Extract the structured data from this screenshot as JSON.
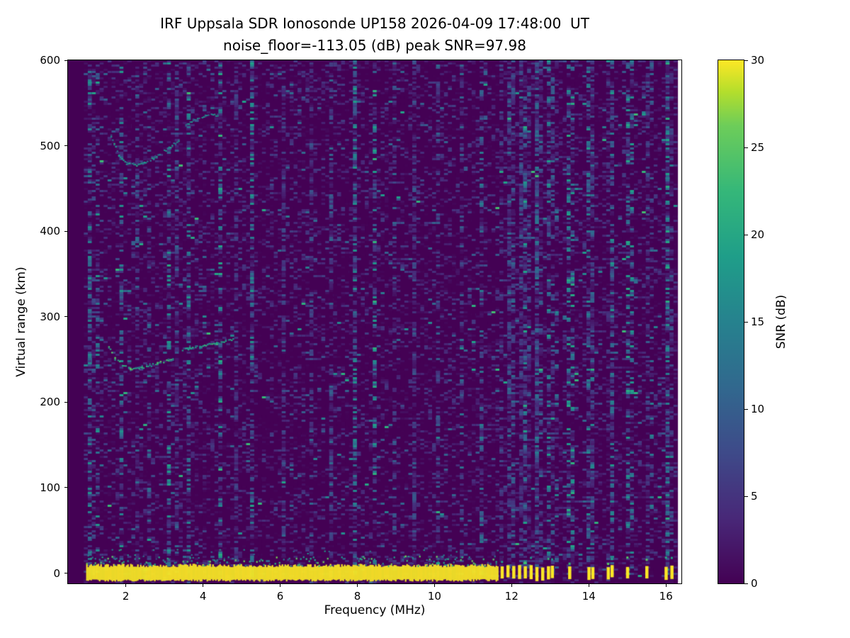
{
  "chart_data": {
    "type": "heatmap",
    "title": "IRF Uppsala SDR Ionosonde UP158 2026-04-09 17:48:00  UT",
    "subtitle": "noise_floor=-113.05 (dB) peak SNR=97.98",
    "xlabel": "Frequency (MHz)",
    "ylabel": "Virtual range (km)",
    "xlim": [
      0.5,
      16.4
    ],
    "ylim": [
      -12,
      600
    ],
    "xticks": [
      2,
      4,
      6,
      8,
      10,
      12,
      14,
      16
    ],
    "yticks": [
      0,
      100,
      200,
      300,
      400,
      500,
      600
    ],
    "grid": false,
    "legend": "none",
    "colorbar": {
      "label": "SNR (dB)",
      "min": 0,
      "max": 30,
      "ticks": [
        0,
        5,
        10,
        15,
        20,
        25,
        30
      ],
      "colormap": "viridis",
      "low_color": "#440154",
      "high_color": "#fde725"
    },
    "noise_floor_db": -113.05,
    "peak_snr_db": 97.98,
    "features": {
      "background_snr_db": 1,
      "data_freq_start_mhz": 0.97,
      "data_freq_end_mhz": 16.31,
      "ground_pulse": {
        "freq_start": 0.97,
        "freq_end": 11.62,
        "range_km": 0,
        "half_width_km": 7,
        "snr_db": 30
      },
      "pulse_frequencies_mhz": [
        11.75,
        11.9,
        12.05,
        12.2,
        12.35,
        12.5,
        12.65,
        12.8,
        12.95,
        13.05,
        13.5,
        14.0,
        14.1,
        14.5,
        14.6,
        15.0,
        15.5,
        16.0,
        16.15
      ],
      "echo_traces": [
        {
          "name": "F-region first hop cusp",
          "snr_db": 19,
          "points": [
            [
              1.5,
              268
            ],
            [
              1.7,
              252
            ],
            [
              1.9,
              244
            ],
            [
              2.1,
              240
            ],
            [
              2.4,
              241
            ],
            [
              2.8,
              246
            ],
            [
              3.2,
              252
            ]
          ]
        },
        {
          "name": "F-region first hop upper segment",
          "snr_db": 17,
          "points": [
            [
              3.45,
              262
            ],
            [
              3.9,
              266
            ],
            [
              4.3,
              270
            ],
            [
              4.8,
              274
            ]
          ]
        },
        {
          "name": "second hop cusp",
          "snr_db": 15,
          "points": [
            [
              1.6,
              512
            ],
            [
              1.8,
              490
            ],
            [
              2.0,
              480
            ],
            [
              2.3,
              478
            ],
            [
              2.7,
              486
            ],
            [
              3.1,
              498
            ],
            [
              3.35,
              507
            ]
          ]
        },
        {
          "name": "second hop upper segment",
          "snr_db": 13,
          "points": [
            [
              3.5,
              524
            ],
            [
              3.8,
              532
            ],
            [
              4.2,
              538
            ],
            [
              4.4,
              535
            ]
          ]
        }
      ],
      "rfi_streaks_mhz": [
        1.05,
        1.15,
        1.3,
        1.9,
        2.3,
        2.6,
        3.1,
        3.3,
        3.6,
        4.4,
        4.9,
        5.3,
        6.1,
        6.8,
        7.3,
        7.9,
        8.4,
        9.0,
        9.5,
        10.1,
        10.7,
        11.2,
        11.9,
        12.3,
        12.7,
        13.2,
        13.6,
        14.1,
        14.6,
        15.1,
        15.6,
        16.0
      ]
    }
  }
}
